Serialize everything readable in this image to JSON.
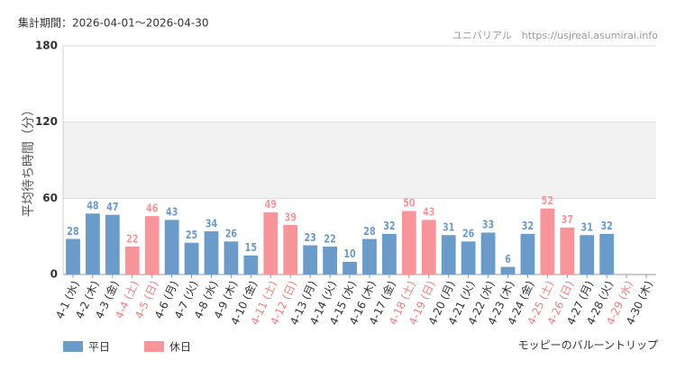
{
  "chart_data": {
    "type": "bar",
    "period": "集計期間：2026-04-01〜2026-04-30",
    "source": "ユニバリアル　https://usjreal.asumirai.info",
    "attraction": "モッピーのバルーントリップ",
    "y_label": "平均待ち時間（分）",
    "categories": [
      "4-1 (水)",
      "4-2 (木)",
      "4-3 (金)",
      "4-4 (土)",
      "4-5 (日)",
      "4-6 (月)",
      "4-7 (火)",
      "4-8 (水)",
      "4-9 (木)",
      "4-10 (金)",
      "4-11 (土)",
      "4-12 (日)",
      "4-13 (月)",
      "4-14 (火)",
      "4-15 (水)",
      "4-16 (木)",
      "4-17 (金)",
      "4-18 (土)",
      "4-19 (日)",
      "4-20 (月)",
      "4-21 (火)",
      "4-22 (水)",
      "4-23 (木)",
      "4-24 (金)",
      "4-25 (土)",
      "4-26 (日)",
      "4-27 (月)",
      "4-28 (火)",
      "4-29 (水)",
      "4-30 (木)"
    ],
    "category_label_colors": [
      "#333",
      "#333",
      "#333",
      "#f08080",
      "#f08080",
      "#333",
      "#333",
      "#333",
      "#333",
      "#333",
      "#f08080",
      "#f08080",
      "#333",
      "#333",
      "#333",
      "#333",
      "#333",
      "#f08080",
      "#f08080",
      "#333",
      "#333",
      "#333",
      "#333",
      "#333",
      "#f08080",
      "#f08080",
      "#333",
      "#333",
      "#f08080",
      "#333"
    ],
    "series": [
      {
        "name": "平日",
        "color": "#6b9bc9",
        "values": [
          28,
          48,
          47,
          null,
          null,
          43,
          25,
          34,
          26,
          15,
          null,
          null,
          23,
          22,
          10,
          28,
          32,
          null,
          null,
          31,
          26,
          33,
          6,
          32,
          null,
          null,
          31,
          32,
          null,
          null
        ]
      },
      {
        "name": "休日",
        "color": "#f7959b",
        "values": [
          null,
          null,
          null,
          22,
          46,
          null,
          null,
          null,
          null,
          null,
          49,
          39,
          null,
          null,
          null,
          null,
          null,
          50,
          43,
          null,
          null,
          null,
          null,
          null,
          52,
          37,
          null,
          null,
          null,
          null
        ]
      }
    ],
    "ylim": [
      0,
      180
    ],
    "yticks": [
      0,
      60,
      120,
      180
    ],
    "grid": true,
    "band_color": "#f2f2f2"
  }
}
